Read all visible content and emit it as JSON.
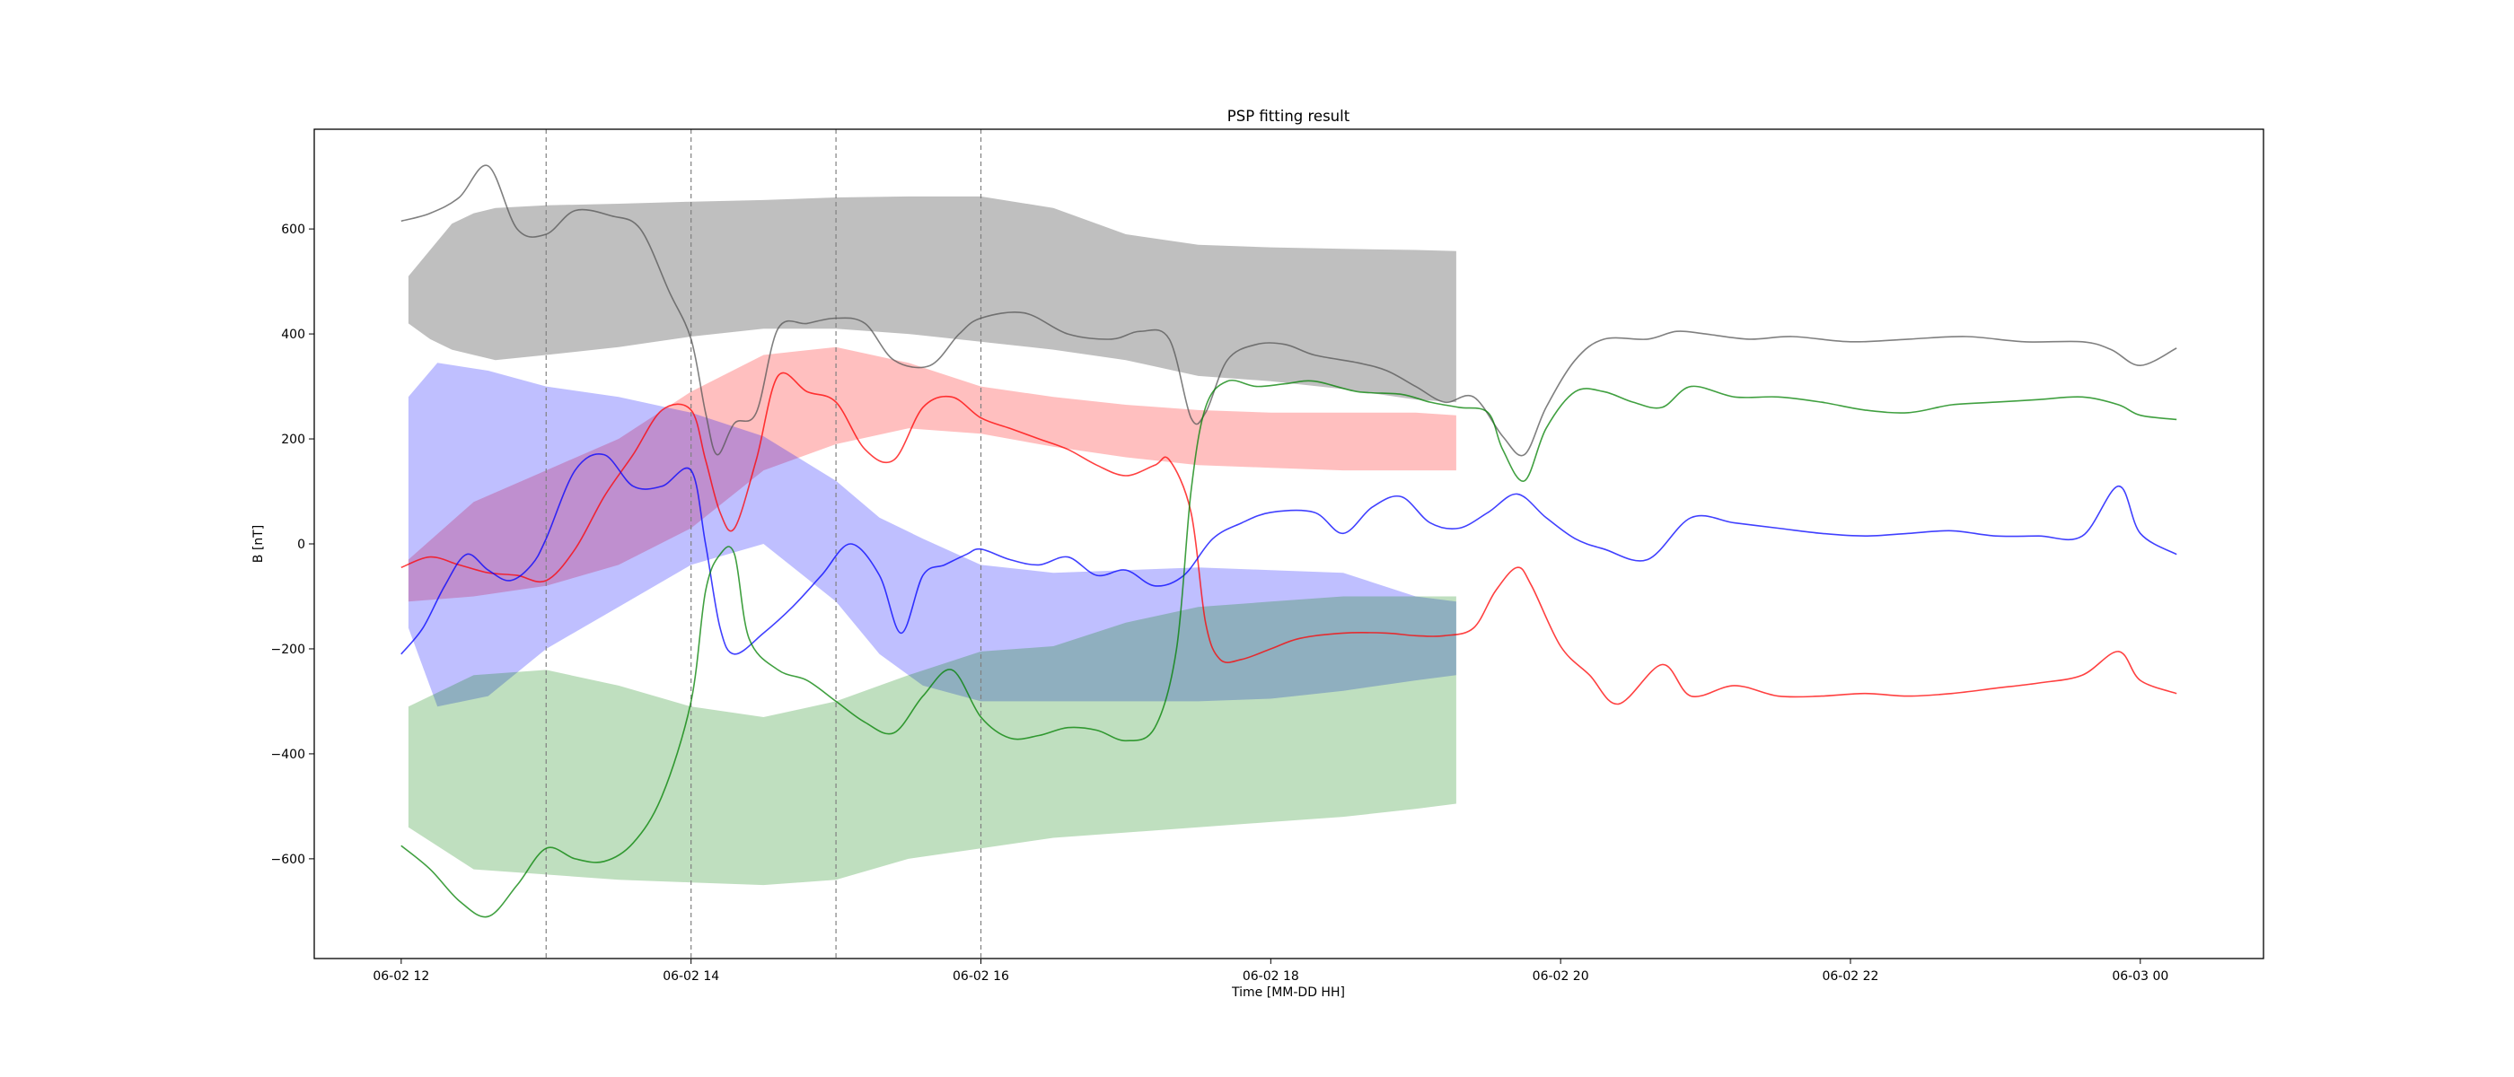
{
  "chart_data": {
    "type": "line",
    "title": "PSP fitting result",
    "xlabel": "Time [MM-DD HH]",
    "ylabel": "B [nT]",
    "x_unit": "hours",
    "xlim": [
      11.4,
      24.85
    ],
    "ylim": [
      -790,
      790
    ],
    "x_ticks": [
      {
        "x": 12,
        "label": "06-02 12"
      },
      {
        "x": 14,
        "label": "06-02 14"
      },
      {
        "x": 16,
        "label": "06-02 16"
      },
      {
        "x": 18,
        "label": "06-02 18"
      },
      {
        "x": 20,
        "label": "06-02 20"
      },
      {
        "x": 22,
        "label": "06-02 22"
      },
      {
        "x": 24,
        "label": "06-03 00"
      }
    ],
    "y_ticks": [
      -600,
      -400,
      -200,
      0,
      200,
      400,
      600
    ],
    "vlines": [
      13,
      14,
      15,
      16
    ],
    "grid": false,
    "legend": "none",
    "bands": [
      {
        "color": "#808080",
        "alpha": 0.5,
        "x": [
          12.05,
          12.2,
          12.35,
          12.5,
          12.65,
          13.0,
          13.5,
          14.0,
          14.5,
          15.0,
          15.5,
          16.0,
          16.5,
          17.0,
          17.5,
          18.0,
          18.5,
          19.0,
          19.28
        ],
        "upper": [
          510,
          560,
          610,
          630,
          640,
          645,
          648,
          652,
          655,
          660,
          662,
          662,
          640,
          590,
          570,
          565,
          562,
          560,
          558
        ],
        "lower": [
          420,
          390,
          370,
          360,
          350,
          360,
          375,
          395,
          410,
          410,
          400,
          385,
          370,
          350,
          320,
          310,
          295,
          275,
          270
        ]
      },
      {
        "color": "#ff0000",
        "alpha": 0.25,
        "x": [
          12.05,
          12.5,
          13.0,
          13.5,
          14.0,
          14.5,
          15.0,
          15.5,
          16.0,
          16.5,
          17.0,
          17.5,
          18.0,
          18.5,
          19.0,
          19.28
        ],
        "upper": [
          -30,
          80,
          140,
          200,
          290,
          360,
          375,
          345,
          300,
          280,
          265,
          255,
          250,
          250,
          250,
          245
        ],
        "lower": [
          -110,
          -100,
          -80,
          -40,
          30,
          140,
          190,
          220,
          210,
          185,
          165,
          150,
          145,
          140,
          140,
          140
        ]
      },
      {
        "color": "#0000ff",
        "alpha": 0.25,
        "x": [
          12.05,
          12.25,
          12.6,
          13.0,
          13.5,
          14.0,
          14.5,
          15.0,
          15.3,
          15.6,
          16.0,
          16.5,
          17.0,
          17.5,
          18.0,
          18.5,
          19.0,
          19.28
        ],
        "upper": [
          280,
          345,
          330,
          300,
          280,
          250,
          205,
          120,
          50,
          10,
          -40,
          -55,
          -50,
          -45,
          -50,
          -55,
          -100,
          -110
        ],
        "lower": [
          -160,
          -310,
          -290,
          -200,
          -120,
          -40,
          0,
          -110,
          -210,
          -270,
          -300,
          -300,
          -300,
          -300,
          -295,
          -280,
          -260,
          -250
        ]
      },
      {
        "color": "#008000",
        "alpha": 0.25,
        "x": [
          12.05,
          12.5,
          13.0,
          13.5,
          14.0,
          14.5,
          15.0,
          15.5,
          16.0,
          16.5,
          17.0,
          17.5,
          18.0,
          18.5,
          19.0,
          19.28
        ],
        "upper": [
          -310,
          -250,
          -240,
          -270,
          -310,
          -330,
          -300,
          -250,
          -205,
          -195,
          -150,
          -120,
          -110,
          -100,
          -100,
          -100
        ],
        "lower": [
          -540,
          -620,
          -630,
          -640,
          -645,
          -650,
          -640,
          -600,
          -580,
          -560,
          -550,
          -540,
          -530,
          -520,
          -505,
          -495
        ]
      }
    ],
    "series": [
      {
        "color": "#555555",
        "x": [
          12.0,
          12.2,
          12.4,
          12.6,
          12.8,
          13.0,
          13.2,
          13.45,
          13.65,
          13.85,
          14.0,
          14.1,
          14.18,
          14.3,
          14.45,
          14.6,
          14.8,
          15.0,
          15.2,
          15.4,
          15.65,
          15.85,
          16.0,
          16.3,
          16.6,
          16.9,
          17.1,
          17.3,
          17.45,
          17.55,
          17.7,
          17.9,
          18.1,
          18.3,
          18.6,
          18.8,
          19.0,
          19.2,
          19.4,
          19.6,
          19.75,
          19.9,
          20.1,
          20.3,
          20.6,
          20.8,
          21.0,
          21.3,
          21.6,
          22.0,
          22.4,
          22.8,
          23.2,
          23.6,
          23.8,
          24.0,
          24.25
        ],
        "y": [
          615,
          630,
          660,
          720,
          600,
          590,
          635,
          625,
          600,
          480,
          390,
          250,
          170,
          230,
          250,
          410,
          420,
          430,
          420,
          350,
          340,
          400,
          430,
          440,
          400,
          390,
          405,
          390,
          240,
          250,
          350,
          380,
          380,
          360,
          345,
          330,
          300,
          270,
          280,
          205,
          170,
          260,
          350,
          390,
          390,
          405,
          400,
          390,
          395,
          385,
          390,
          395,
          385,
          385,
          370,
          340,
          373
        ]
      },
      {
        "color": "#ff0000",
        "x": [
          12.0,
          12.2,
          12.4,
          12.6,
          12.8,
          13.0,
          13.2,
          13.4,
          13.6,
          13.8,
          14.0,
          14.1,
          14.2,
          14.3,
          14.45,
          14.6,
          14.8,
          15.0,
          15.2,
          15.4,
          15.6,
          15.8,
          16.0,
          16.2,
          16.4,
          16.6,
          16.8,
          17.0,
          17.2,
          17.3,
          17.45,
          17.55,
          17.65,
          17.8,
          18.0,
          18.2,
          18.5,
          18.8,
          19.0,
          19.2,
          19.4,
          19.55,
          19.7,
          19.8,
          20.0,
          20.2,
          20.4,
          20.7,
          20.9,
          21.2,
          21.5,
          21.8,
          22.1,
          22.4,
          22.7,
          23.0,
          23.3,
          23.6,
          23.85,
          24.0,
          24.25
        ],
        "y": [
          -45,
          -25,
          -40,
          -55,
          -60,
          -70,
          -10,
          90,
          170,
          255,
          255,
          160,
          60,
          30,
          160,
          320,
          290,
          270,
          180,
          160,
          260,
          280,
          240,
          220,
          200,
          180,
          150,
          130,
          150,
          160,
          60,
          -150,
          -220,
          -220,
          -200,
          -180,
          -170,
          -170,
          -175,
          -175,
          -160,
          -90,
          -45,
          -80,
          -195,
          -250,
          -305,
          -230,
          -290,
          -270,
          -290,
          -290,
          -285,
          -290,
          -285,
          -275,
          -265,
          -250,
          -205,
          -260,
          -285
        ]
      },
      {
        "color": "#0000ff",
        "x": [
          12.0,
          12.15,
          12.3,
          12.45,
          12.6,
          12.75,
          12.9,
          13.0,
          13.2,
          13.4,
          13.6,
          13.8,
          14.0,
          14.1,
          14.2,
          14.3,
          14.5,
          14.7,
          14.9,
          15.1,
          15.3,
          15.45,
          15.6,
          15.75,
          15.9,
          16.0,
          16.2,
          16.4,
          16.6,
          16.8,
          17.0,
          17.2,
          17.4,
          17.6,
          17.8,
          18.0,
          18.3,
          18.5,
          18.7,
          18.9,
          19.1,
          19.3,
          19.5,
          19.7,
          19.9,
          20.1,
          20.3,
          20.6,
          20.9,
          21.2,
          21.5,
          21.8,
          22.1,
          22.4,
          22.7,
          23.0,
          23.3,
          23.6,
          23.85,
          24.0,
          24.25
        ],
        "y": [
          -210,
          -160,
          -80,
          -20,
          -50,
          -70,
          -40,
          10,
          140,
          170,
          110,
          110,
          140,
          0,
          -160,
          -210,
          -170,
          -120,
          -60,
          0,
          -60,
          -170,
          -60,
          -40,
          -20,
          -10,
          -30,
          -40,
          -25,
          -60,
          -50,
          -80,
          -60,
          10,
          40,
          60,
          60,
          20,
          70,
          90,
          40,
          30,
          60,
          95,
          50,
          10,
          -10,
          -30,
          50,
          40,
          30,
          20,
          15,
          20,
          25,
          15,
          15,
          15,
          110,
          20,
          -20
        ]
      },
      {
        "color": "#008000",
        "x": [
          12.0,
          12.2,
          12.4,
          12.6,
          12.8,
          13.0,
          13.2,
          13.4,
          13.6,
          13.8,
          14.0,
          14.1,
          14.2,
          14.3,
          14.4,
          14.6,
          14.8,
          15.0,
          15.2,
          15.4,
          15.6,
          15.8,
          16.0,
          16.2,
          16.4,
          16.6,
          16.8,
          17.0,
          17.2,
          17.35,
          17.45,
          17.55,
          17.7,
          17.9,
          18.1,
          18.3,
          18.6,
          18.9,
          19.1,
          19.3,
          19.5,
          19.6,
          19.75,
          19.9,
          20.1,
          20.3,
          20.5,
          20.7,
          20.9,
          21.2,
          21.5,
          21.8,
          22.1,
          22.4,
          22.7,
          23.0,
          23.3,
          23.6,
          23.85,
          24.0,
          24.25
        ],
        "y": [
          -575,
          -620,
          -680,
          -710,
          -650,
          -580,
          -600,
          -605,
          -570,
          -480,
          -300,
          -90,
          -20,
          -20,
          -180,
          -240,
          -260,
          -300,
          -340,
          -360,
          -290,
          -240,
          -330,
          -370,
          -365,
          -350,
          -355,
          -375,
          -350,
          -200,
          100,
          260,
          310,
          300,
          305,
          310,
          290,
          285,
          270,
          260,
          250,
          180,
          120,
          220,
          290,
          290,
          270,
          260,
          300,
          280,
          280,
          270,
          255,
          250,
          265,
          270,
          275,
          280,
          265,
          245,
          237
        ]
      }
    ]
  }
}
